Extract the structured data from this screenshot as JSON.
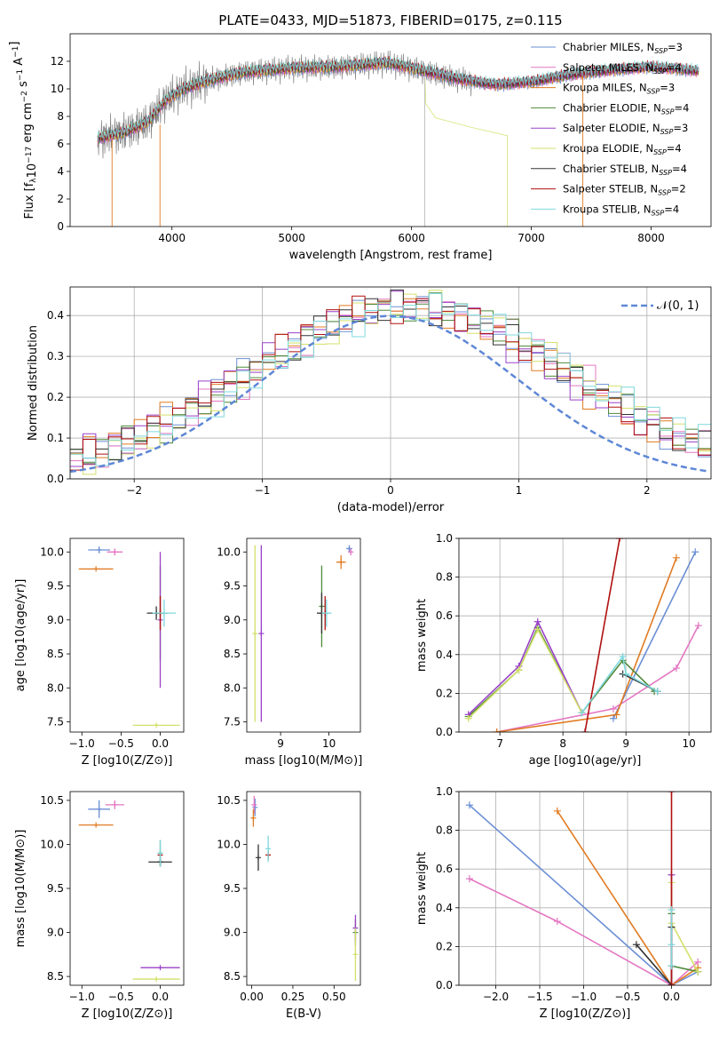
{
  "figure_title": "PLATE=0433, MJD=51873, FIBERID=0175, z=0.115",
  "colors": {
    "Chabrier MILES": "#6b8fd4",
    "Salpeter MILES": "#e377c2",
    "Kroupa MILES": "#e07b22",
    "Chabrier ELODIE": "#4f8a3a",
    "Salpeter ELODIE": "#9a40c8",
    "Kroupa ELODIE": "#d4e06a",
    "Chabrier STELIB": "#333333",
    "Salpeter STELIB": "#b01010",
    "Kroupa STELIB": "#7fd8dc",
    "gaussian": "#5e87d6",
    "data_gray": "#7f7f7f"
  },
  "chart_data": [
    {
      "id": "spectrum",
      "type": "line",
      "title": "PLATE=0433, MJD=51873, FIBERID=0175, z=0.115",
      "xlabel": "wavelength [Angstrom, rest frame]",
      "ylabel": "Flux [f_λ 10^-17 erg cm^-2 s^-1 A^-1]",
      "xlim": [
        3150,
        8500
      ],
      "ylim": [
        0,
        14
      ],
      "xticks": [
        "4000",
        "5000",
        "6000",
        "7000",
        "8000"
      ],
      "yticks": [
        "0",
        "2",
        "4",
        "6",
        "8",
        "10",
        "12"
      ],
      "grid": false,
      "legend_position": "right",
      "spectrum_control_points": {
        "x": [
          3380,
          3600,
          3800,
          3950,
          4100,
          4300,
          4600,
          5000,
          5400,
          5800,
          6100,
          6400,
          6700,
          7000,
          7300,
          7600,
          8000,
          8400
        ],
        "y": [
          6.4,
          6.8,
          7.6,
          9.2,
          10.0,
          10.6,
          11.2,
          11.5,
          11.6,
          11.9,
          11.3,
          10.7,
          10.3,
          10.5,
          11.0,
          11.3,
          11.6,
          11.3
        ]
      },
      "kroupa_elodie_cutoff": {
        "x": [
          6120,
          6200,
          6500,
          6800
        ],
        "y": [
          8.9,
          7.9,
          7.2,
          6.6
        ]
      },
      "legend": [
        {
          "label": "Chabrier MILES, N_SSP=3",
          "text": "Chabrier MILES, N",
          "sub": "SSP",
          "n": "=3",
          "key": "Chabrier MILES"
        },
        {
          "label": "Salpeter MILES, N_SSP=4",
          "text": "Salpeter MILES, N",
          "sub": "SSP",
          "n": "=4",
          "key": "Salpeter MILES"
        },
        {
          "label": "Kroupa MILES, N_SSP=3",
          "text": "Kroupa MILES, N",
          "sub": "SSP",
          "n": "=3",
          "key": "Kroupa MILES"
        },
        {
          "label": "Chabrier ELODIE, N_SSP=4",
          "text": "Chabrier ELODIE, N",
          "sub": "SSP",
          "n": "=4",
          "key": "Chabrier ELODIE"
        },
        {
          "label": "Salpeter ELODIE, N_SSP=3",
          "text": "Salpeter ELODIE, N",
          "sub": "SSP",
          "n": "=3",
          "key": "Salpeter ELODIE"
        },
        {
          "label": "Kroupa ELODIE, N_SSP=4",
          "text": "Kroupa ELODIE, N",
          "sub": "SSP",
          "n": "=4",
          "key": "Kroupa ELODIE"
        },
        {
          "label": "Chabrier STELIB, N_SSP=4",
          "text": "Chabrier STELIB, N",
          "sub": "SSP",
          "n": "=4",
          "key": "Chabrier STELIB"
        },
        {
          "label": "Salpeter STELIB, N_SSP=2",
          "text": "Salpeter STELIB, N",
          "sub": "SSP",
          "n": "=2",
          "key": "Salpeter STELIB"
        },
        {
          "label": "Kroupa STELIB, N_SSP=4",
          "text": "Kroupa STELIB, N",
          "sub": "SSP",
          "n": "=4",
          "key": "Kroupa STELIB"
        }
      ]
    },
    {
      "id": "residuals",
      "type": "line",
      "xlabel": "(data-model)/error",
      "ylabel": "Normed distribution",
      "xlim": [
        -2.5,
        2.5
      ],
      "ylim": [
        0,
        0.47
      ],
      "xticks": [
        "−2",
        "−1",
        "0",
        "1",
        "2"
      ],
      "yticks": [
        "0.0",
        "0.1",
        "0.2",
        "0.3",
        "0.4"
      ],
      "grid": true,
      "legend": {
        "label": "𝒩(0, 1)",
        "position": "top-right"
      },
      "gaussian": {
        "mu": 0,
        "sigma": 1
      },
      "bin_width": 0.1,
      "hist_offsets": [
        0.006,
        -0.004,
        0.01,
        0.0,
        -0.008,
        -0.015,
        0.004,
        0.018,
        -0.01,
        0.012,
        -0.006,
        0.015,
        -0.012,
        0.02,
        -0.002,
        0.008,
        -0.018,
        0.006,
        0.011,
        -0.009,
        0.003,
        -0.014,
        0.016,
        -0.005,
        0.009,
        0.001,
        -0.011,
        0.013,
        -0.003,
        0.007
      ],
      "hist_shift": [
        0.12,
        0.2,
        0.08,
        0.18,
        0.05,
        0.22,
        0.15,
        0.1,
        0.25
      ]
    },
    {
      "id": "age-vs-Z",
      "type": "scatter",
      "xlabel": "Z [log10(Z/Z⊙)]",
      "ylabel": "age [log10(age/yr)]",
      "xlim": [
        -1.15,
        0.3
      ],
      "ylim": [
        7.35,
        10.2
      ],
      "xticks": [
        "−1.0",
        "−0.5",
        "0.0"
      ],
      "xtick_values": [
        -1.0,
        -0.5,
        0.0
      ],
      "yticks": [
        "7.5",
        "8.0",
        "8.5",
        "9.0",
        "9.5",
        "10.0"
      ],
      "ytick_values": [
        7.5,
        8.0,
        8.5,
        9.0,
        9.5,
        10.0
      ],
      "points": [
        {
          "key": "Chabrier MILES",
          "x": -0.78,
          "y": 10.03,
          "xerr": 0.14,
          "yerr": 0.05
        },
        {
          "key": "Salpeter MILES",
          "x": -0.58,
          "y": 10.0,
          "xerr": 0.1,
          "yerr": 0.05
        },
        {
          "key": "Kroupa MILES",
          "x": -0.82,
          "y": 9.75,
          "xerr": 0.22,
          "yerr": 0.0
        },
        {
          "key": "Chabrier ELODIE",
          "x": 0.0,
          "y": 9.1,
          "xerr": 0.1,
          "yerr": 0.7
        },
        {
          "key": "Salpeter ELODIE",
          "x": 0.0,
          "y": 9.0,
          "xerr": 0.0,
          "yerr": 1.0
        },
        {
          "key": "Kroupa ELODIE",
          "x": -0.05,
          "y": 7.45,
          "xerr": 0.3,
          "yerr": 0.0
        },
        {
          "key": "Chabrier STELIB",
          "x": -0.05,
          "y": 9.1,
          "xerr": 0.12,
          "yerr": 0.1
        },
        {
          "key": "Salpeter STELIB",
          "x": 0.0,
          "y": 9.1,
          "xerr": 0.0,
          "yerr": 0.25
        },
        {
          "key": "Kroupa STELIB",
          "x": 0.05,
          "y": 9.1,
          "xerr": 0.15,
          "yerr": 0.2
        }
      ]
    },
    {
      "id": "age-vs-mass",
      "type": "scatter",
      "xlabel": "mass [log10(M/M⊙)]",
      "ylabel": "",
      "xlim": [
        8.3,
        10.65
      ],
      "ylim": [
        7.35,
        10.2
      ],
      "xticks": [
        "9",
        "10"
      ],
      "xtick_values": [
        9,
        10
      ],
      "yticks": [
        "7.5",
        "8.0",
        "8.5",
        "9.0",
        "9.5",
        "10.0"
      ],
      "ytick_values": [
        7.5,
        8.0,
        8.5,
        9.0,
        9.5,
        10.0
      ],
      "points": [
        {
          "key": "Chabrier MILES",
          "x": 10.42,
          "y": 10.05,
          "xerr": 0.06,
          "yerr": 0.05
        },
        {
          "key": "Salpeter MILES",
          "x": 10.45,
          "y": 10.0,
          "xerr": 0.05,
          "yerr": 0.05
        },
        {
          "key": "Kroupa MILES",
          "x": 10.25,
          "y": 9.85,
          "xerr": 0.1,
          "yerr": 0.1
        },
        {
          "key": "Chabrier ELODIE",
          "x": 9.85,
          "y": 9.2,
          "xerr": 0.0,
          "yerr": 0.6
        },
        {
          "key": "Salpeter ELODIE",
          "x": 8.6,
          "y": 8.8,
          "xerr": 0.0,
          "yerr": 1.3
        },
        {
          "key": "Kroupa ELODIE",
          "x": 8.47,
          "y": 8.8,
          "xerr": 0.0,
          "yerr": 1.3
        },
        {
          "key": "Chabrier STELIB",
          "x": 9.85,
          "y": 9.1,
          "xerr": 0.1,
          "yerr": 0.3
        },
        {
          "key": "Salpeter STELIB",
          "x": 9.92,
          "y": 9.1,
          "xerr": 0.0,
          "yerr": 0.25
        },
        {
          "key": "Kroupa STELIB",
          "x": 9.95,
          "y": 9.1,
          "xerr": 0.1,
          "yerr": 0.2
        }
      ]
    },
    {
      "id": "weight-vs-age",
      "type": "line",
      "xlabel": "age [log10(age/yr)]",
      "ylabel": "mass weight",
      "xlim": [
        6.35,
        10.35
      ],
      "ylim": [
        0,
        1.0
      ],
      "xticks": [
        "7",
        "8",
        "9",
        "10"
      ],
      "xtick_values": [
        7,
        8,
        9,
        10
      ],
      "yticks": [
        "0.0",
        "0.2",
        "0.4",
        "0.6",
        "0.8",
        "1.0"
      ],
      "ytick_values": [
        0,
        0.2,
        0.4,
        0.6,
        0.8,
        1.0
      ],
      "grid": true,
      "series": [
        {
          "key": "Chabrier MILES",
          "x": [
            8.8,
            10.1
          ],
          "y": [
            0.07,
            0.93
          ]
        },
        {
          "key": "Salpeter MILES",
          "x": [
            6.95,
            8.8,
            9.8,
            10.15
          ],
          "y": [
            0.0,
            0.12,
            0.33,
            0.55
          ]
        },
        {
          "key": "Kroupa MILES",
          "x": [
            6.95,
            8.85,
            9.8
          ],
          "y": [
            0.0,
            0.09,
            0.9
          ]
        },
        {
          "key": "Chabrier ELODIE",
          "x": [
            6.5,
            7.3,
            7.6,
            8.3,
            8.95,
            9.45
          ],
          "y": [
            0.08,
            0.32,
            0.54,
            0.1,
            0.37,
            0.21
          ]
        },
        {
          "key": "Salpeter ELODIE",
          "x": [
            6.5,
            7.3,
            7.6,
            8.3
          ],
          "y": [
            0.09,
            0.34,
            0.57,
            0.1
          ]
        },
        {
          "key": "Kroupa ELODIE",
          "x": [
            6.5,
            7.3,
            7.6,
            8.3
          ],
          "y": [
            0.07,
            0.32,
            0.53,
            0.1
          ]
        },
        {
          "key": "Chabrier STELIB",
          "x": [
            8.95,
            9.5
          ],
          "y": [
            0.3,
            0.21
          ]
        },
        {
          "key": "Salpeter STELIB",
          "x": [
            8.35,
            8.9
          ],
          "y": [
            0.0,
            1.0
          ]
        },
        {
          "key": "Kroupa STELIB",
          "x": [
            8.3,
            8.95,
            9.0,
            9.5
          ],
          "y": [
            0.1,
            0.39,
            0.3,
            0.21
          ]
        }
      ]
    },
    {
      "id": "mass-vs-Z",
      "type": "scatter",
      "xlabel": "Z [log10(Z/Z⊙)]",
      "ylabel": "mass [log10(M/M⊙)]",
      "xlim": [
        -1.15,
        0.3
      ],
      "ylim": [
        8.4,
        10.6
      ],
      "xticks": [
        "−1.0",
        "−0.5",
        "0.0"
      ],
      "xtick_values": [
        -1.0,
        -0.5,
        0.0
      ],
      "yticks": [
        "8.5",
        "9.0",
        "9.5",
        "10.0",
        "10.5"
      ],
      "ytick_values": [
        8.5,
        9.0,
        9.5,
        10.0,
        10.5
      ],
      "points": [
        {
          "key": "Chabrier MILES",
          "x": -0.78,
          "y": 10.4,
          "xerr": 0.14,
          "yerr": 0.1
        },
        {
          "key": "Salpeter MILES",
          "x": -0.58,
          "y": 10.45,
          "xerr": 0.12,
          "yerr": 0.05
        },
        {
          "key": "Kroupa MILES",
          "x": -0.82,
          "y": 10.22,
          "xerr": 0.22,
          "yerr": 0.0
        },
        {
          "key": "Chabrier ELODIE",
          "x": 0.0,
          "y": 9.9,
          "xerr": 0.0,
          "yerr": 0.15
        },
        {
          "key": "Salpeter ELODIE",
          "x": 0.0,
          "y": 8.6,
          "xerr": 0.25,
          "yerr": 0.0
        },
        {
          "key": "Kroupa ELODIE",
          "x": -0.05,
          "y": 8.47,
          "xerr": 0.3,
          "yerr": 0.0
        },
        {
          "key": "Chabrier STELIB",
          "x": 0.0,
          "y": 9.8,
          "xerr": 0.15,
          "yerr": 0.05
        },
        {
          "key": "Salpeter STELIB",
          "x": 0.0,
          "y": 9.88,
          "xerr": 0.0,
          "yerr": 0.0
        },
        {
          "key": "Kroupa STELIB",
          "x": 0.0,
          "y": 9.9,
          "xerr": 0.0,
          "yerr": 0.15
        }
      ]
    },
    {
      "id": "mass-vs-EBV",
      "type": "scatter",
      "xlabel": "E(B-V)",
      "ylabel": "",
      "xlim": [
        -0.03,
        0.66
      ],
      "ylim": [
        8.4,
        10.6
      ],
      "xticks": [
        "0.00",
        "0.25",
        "0.50"
      ],
      "xtick_values": [
        0.0,
        0.25,
        0.5
      ],
      "yticks": [
        "8.5",
        "9.0",
        "9.5",
        "10.0",
        "10.5"
      ],
      "ytick_values": [
        8.5,
        9.0,
        9.5,
        10.0,
        10.5
      ],
      "points": [
        {
          "key": "Chabrier MILES",
          "x": 0.02,
          "y": 10.42,
          "xerr": 0.0,
          "yerr": 0.1
        },
        {
          "key": "Salpeter MILES",
          "x": 0.015,
          "y": 10.45,
          "xerr": 0.0,
          "yerr": 0.1
        },
        {
          "key": "Kroupa MILES",
          "x": 0.01,
          "y": 10.3,
          "xerr": 0.0,
          "yerr": 0.1
        },
        {
          "key": "Chabrier ELODIE",
          "x": 0.63,
          "y": 9.0,
          "xerr": 0.0,
          "yerr": 0.15
        },
        {
          "key": "Salpeter ELODIE",
          "x": 0.63,
          "y": 9.05,
          "xerr": 0.0,
          "yerr": 0.15
        },
        {
          "key": "Kroupa ELODIE",
          "x": 0.63,
          "y": 8.75,
          "xerr": 0.0,
          "yerr": 0.3
        },
        {
          "key": "Chabrier STELIB",
          "x": 0.04,
          "y": 9.85,
          "xerr": 0.0,
          "yerr": 0.15
        },
        {
          "key": "Salpeter STELIB",
          "x": 0.1,
          "y": 9.88,
          "xerr": 0.0,
          "yerr": 0.05
        },
        {
          "key": "Kroupa STELIB",
          "x": 0.1,
          "y": 9.95,
          "xerr": 0.0,
          "yerr": 0.15
        }
      ]
    },
    {
      "id": "weight-vs-Z",
      "type": "line",
      "xlabel": "Z [log10(Z/Z⊙)]",
      "ylabel": "mass weight",
      "xlim": [
        -2.42,
        0.45
      ],
      "ylim": [
        0,
        1.0
      ],
      "xticks": [
        "−2.0",
        "−1.5",
        "−1.0",
        "−0.5",
        "0.0"
      ],
      "xtick_values": [
        -2.0,
        -1.5,
        -1.0,
        -0.5,
        0.0
      ],
      "yticks": [
        "0.0",
        "0.2",
        "0.4",
        "0.6",
        "0.8",
        "1.0"
      ],
      "ytick_values": [
        0,
        0.2,
        0.4,
        0.6,
        0.8,
        1.0
      ],
      "grid": true,
      "series": [
        {
          "key": "Chabrier MILES",
          "x": [
            -2.3,
            0.0,
            0.3
          ],
          "y": [
            0.93,
            0.0,
            0.07
          ]
        },
        {
          "key": "Salpeter MILES",
          "x": [
            -2.3,
            -1.3,
            0.0,
            0.3
          ],
          "y": [
            0.55,
            0.33,
            0.0,
            0.12
          ]
        },
        {
          "key": "Kroupa MILES",
          "x": [
            -1.3,
            0.0,
            0.3
          ],
          "y": [
            0.9,
            0.0,
            0.09
          ]
        },
        {
          "key": "Chabrier ELODIE",
          "x": [
            0.0,
            0.0,
            0.3
          ],
          "y": [
            0.37,
            0.1,
            0.07
          ]
        },
        {
          "key": "Salpeter ELODIE",
          "x": [
            0.0,
            0.0
          ],
          "y": [
            0.57,
            0.0
          ]
        },
        {
          "key": "Kroupa ELODIE",
          "x": [
            0.0,
            0.0,
            0.3
          ],
          "y": [
            0.53,
            0.32,
            0.07
          ]
        },
        {
          "key": "Chabrier STELIB",
          "x": [
            -0.4,
            0.0,
            0.0
          ],
          "y": [
            0.21,
            0.0,
            0.3
          ]
        },
        {
          "key": "Salpeter STELIB",
          "x": [
            0.0,
            0.0
          ],
          "y": [
            1.0,
            0.0
          ]
        },
        {
          "key": "Kroupa STELIB",
          "x": [
            0.0,
            0.0,
            0.0
          ],
          "y": [
            0.39,
            0.1,
            0.21
          ]
        }
      ]
    }
  ]
}
